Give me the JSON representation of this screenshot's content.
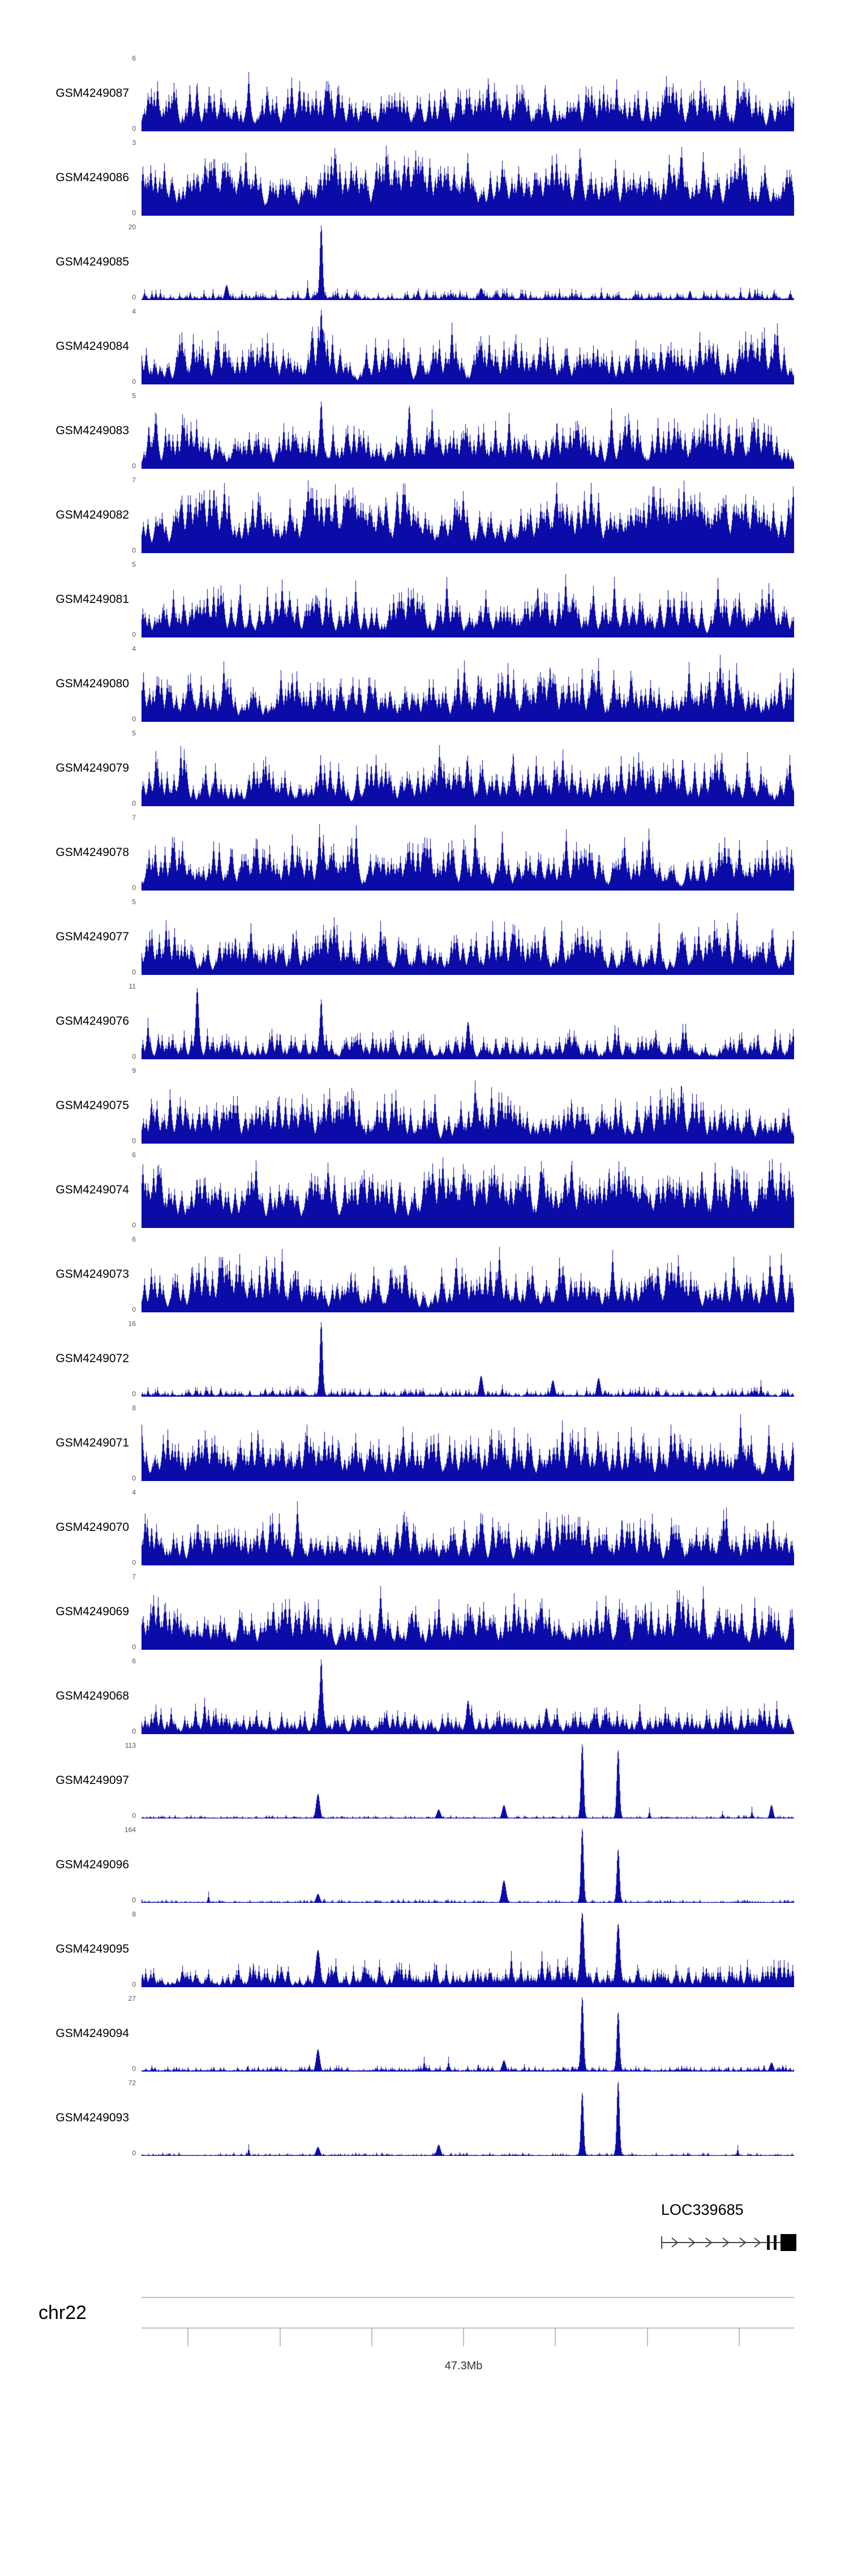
{
  "gene": {
    "name": "LOC339685"
  },
  "ruler": {
    "chrom": "chr22",
    "tick_label": "47.3Mb"
  },
  "chart_data": {
    "type": "area",
    "title": "Genome browser coverage tracks, chr22 around 47.3Mb",
    "x_axis": {
      "chrom": "chr22",
      "tick_label": "47.3Mb"
    },
    "y_zero_label": "0",
    "signal_color": "#0b0ba8",
    "styles": {
      "dense": {
        "base": 0.04,
        "amp": 0.8,
        "power": 2.6,
        "tall": 0.012,
        "tallMax": 0.9,
        "gap": 0.25,
        "decay": 0.8
      },
      "vdense": {
        "base": 0.06,
        "amp": 0.95,
        "power": 1.9,
        "tall": 0.03,
        "tallMax": 0.95,
        "gap": 0.18,
        "decay": 0.84
      },
      "medium": {
        "base": 0.03,
        "amp": 0.45,
        "power": 3.2,
        "tall": 0.006,
        "tallMax": 0.6,
        "gap": 0.3,
        "decay": 0.75
      },
      "mdense": {
        "base": 0.03,
        "amp": 0.38,
        "power": 3.0,
        "tall": 0.008,
        "tallMax": 0.5,
        "gap": 0.3,
        "decay": 0.72
      },
      "spikey": {
        "base": 0.02,
        "amp": 0.16,
        "power": 4.5,
        "tall": 0.003,
        "tallMax": 0.3,
        "gap": 0.3,
        "decay": 0.6
      },
      "sparse": {
        "base": 0.01,
        "amp": 0.05,
        "power": 6.0,
        "tall": 0.0015,
        "tallMax": 0.16,
        "gap": 0.2,
        "decay": 0.5
      },
      "sparse2": {
        "base": 0.015,
        "amp": 0.1,
        "power": 5.0,
        "tall": 0.004,
        "tallMax": 0.2,
        "gap": 0.2,
        "decay": 0.55
      }
    },
    "tracks": [
      {
        "name": "GSM4249087",
        "ymax": 6,
        "ymax_label": "6",
        "style": "dense",
        "seed": 11,
        "peaks": []
      },
      {
        "name": "GSM4249086",
        "ymax": 3,
        "ymax_label": "3",
        "style": "vdense",
        "seed": 22,
        "peaks": []
      },
      {
        "name": "GSM4249085",
        "ymax": 20,
        "ymax_label": "20",
        "style": "spikey",
        "seed": 33,
        "peaks": [
          {
            "x": 0.275,
            "h": 1.0,
            "w": 0.003
          },
          {
            "x": 0.13,
            "h": 0.2,
            "w": 0.004
          },
          {
            "x": 0.52,
            "h": 0.16,
            "w": 0.004
          },
          {
            "x": 0.84,
            "h": 0.12,
            "w": 0.003
          }
        ]
      },
      {
        "name": "GSM4249084",
        "ymax": 4,
        "ymax_label": "4",
        "style": "dense",
        "seed": 44,
        "peaks": [
          {
            "x": 0.275,
            "h": 1.0,
            "w": 0.003
          }
        ]
      },
      {
        "name": "GSM4249083",
        "ymax": 5,
        "ymax_label": "5",
        "style": "dense",
        "seed": 55,
        "peaks": [
          {
            "x": 0.275,
            "h": 0.9,
            "w": 0.003
          },
          {
            "x": 0.41,
            "h": 0.85,
            "w": 0.003
          }
        ]
      },
      {
        "name": "GSM4249082",
        "ymax": 7,
        "ymax_label": "7",
        "style": "vdense",
        "seed": 66,
        "peaks": []
      },
      {
        "name": "GSM4249081",
        "ymax": 5,
        "ymax_label": "5",
        "style": "dense",
        "seed": 77,
        "peaks": []
      },
      {
        "name": "GSM4249080",
        "ymax": 4,
        "ymax_label": "4",
        "style": "dense",
        "seed": 88,
        "peaks": []
      },
      {
        "name": "GSM4249079",
        "ymax": 5,
        "ymax_label": "5",
        "style": "dense",
        "seed": 99,
        "peaks": []
      },
      {
        "name": "GSM4249078",
        "ymax": 7,
        "ymax_label": "7",
        "style": "dense",
        "seed": 110,
        "peaks": []
      },
      {
        "name": "GSM4249077",
        "ymax": 5,
        "ymax_label": "5",
        "style": "dense",
        "seed": 121,
        "peaks": []
      },
      {
        "name": "GSM4249076",
        "ymax": 11,
        "ymax_label": "11",
        "style": "medium",
        "seed": 132,
        "peaks": [
          {
            "x": 0.085,
            "h": 0.95,
            "w": 0.0035
          },
          {
            "x": 0.275,
            "h": 0.8,
            "w": 0.003
          },
          {
            "x": 0.5,
            "h": 0.5,
            "w": 0.004
          }
        ]
      },
      {
        "name": "GSM4249075",
        "ymax": 9,
        "ymax_label": "9",
        "style": "dense",
        "seed": 143,
        "peaks": []
      },
      {
        "name": "GSM4249074",
        "ymax": 6,
        "ymax_label": "6",
        "style": "vdense",
        "seed": 154,
        "peaks": []
      },
      {
        "name": "GSM4249073",
        "ymax": 6,
        "ymax_label": "6",
        "style": "dense",
        "seed": 165,
        "peaks": []
      },
      {
        "name": "GSM4249072",
        "ymax": 16,
        "ymax_label": "16",
        "style": "spikey",
        "seed": 176,
        "peaks": [
          {
            "x": 0.275,
            "h": 1.0,
            "w": 0.003
          },
          {
            "x": 0.52,
            "h": 0.28,
            "w": 0.004
          },
          {
            "x": 0.63,
            "h": 0.22,
            "w": 0.004
          },
          {
            "x": 0.7,
            "h": 0.25,
            "w": 0.004
          }
        ]
      },
      {
        "name": "GSM4249071",
        "ymax": 8,
        "ymax_label": "8",
        "style": "dense",
        "seed": 187,
        "peaks": []
      },
      {
        "name": "GSM4249070",
        "ymax": 4,
        "ymax_label": "4",
        "style": "dense",
        "seed": 198,
        "peaks": []
      },
      {
        "name": "GSM4249069",
        "ymax": 7,
        "ymax_label": "7",
        "style": "dense",
        "seed": 209,
        "peaks": []
      },
      {
        "name": "GSM4249068",
        "ymax": 6,
        "ymax_label": "6",
        "style": "medium",
        "seed": 220,
        "peaks": [
          {
            "x": 0.275,
            "h": 1.0,
            "w": 0.003
          },
          {
            "x": 0.5,
            "h": 0.45,
            "w": 0.004
          },
          {
            "x": 0.62,
            "h": 0.35,
            "w": 0.004
          }
        ]
      },
      {
        "name": "GSM4249097",
        "ymax": 113,
        "ymax_label": "113",
        "style": "sparse",
        "seed": 231,
        "peaks": [
          {
            "x": 0.27,
            "h": 0.33,
            "w": 0.004
          },
          {
            "x": 0.455,
            "h": 0.12,
            "w": 0.004
          },
          {
            "x": 0.555,
            "h": 0.18,
            "w": 0.004
          },
          {
            "x": 0.675,
            "h": 1.0,
            "w": 0.003
          },
          {
            "x": 0.73,
            "h": 0.92,
            "w": 0.003
          },
          {
            "x": 0.965,
            "h": 0.18,
            "w": 0.0035
          }
        ]
      },
      {
        "name": "GSM4249096",
        "ymax": 164,
        "ymax_label": "164",
        "style": "sparse",
        "seed": 242,
        "peaks": [
          {
            "x": 0.27,
            "h": 0.12,
            "w": 0.004
          },
          {
            "x": 0.555,
            "h": 0.3,
            "w": 0.0045
          },
          {
            "x": 0.675,
            "h": 1.0,
            "w": 0.003
          },
          {
            "x": 0.73,
            "h": 0.72,
            "w": 0.003
          }
        ]
      },
      {
        "name": "GSM4249095",
        "ymax": 8,
        "ymax_label": "8",
        "style": "mdense",
        "seed": 253,
        "peaks": [
          {
            "x": 0.27,
            "h": 0.5,
            "w": 0.005
          },
          {
            "x": 0.675,
            "h": 1.0,
            "w": 0.004
          },
          {
            "x": 0.73,
            "h": 0.85,
            "w": 0.004
          }
        ]
      },
      {
        "name": "GSM4249094",
        "ymax": 27,
        "ymax_label": "27",
        "style": "sparse2",
        "seed": 264,
        "peaks": [
          {
            "x": 0.27,
            "h": 0.3,
            "w": 0.004
          },
          {
            "x": 0.555,
            "h": 0.15,
            "w": 0.004
          },
          {
            "x": 0.675,
            "h": 1.0,
            "w": 0.003
          },
          {
            "x": 0.73,
            "h": 0.8,
            "w": 0.003
          },
          {
            "x": 0.965,
            "h": 0.12,
            "w": 0.004
          }
        ]
      },
      {
        "name": "GSM4249093",
        "ymax": 72,
        "ymax_label": "72",
        "style": "sparse",
        "seed": 275,
        "peaks": [
          {
            "x": 0.27,
            "h": 0.12,
            "w": 0.004
          },
          {
            "x": 0.455,
            "h": 0.15,
            "w": 0.004
          },
          {
            "x": 0.675,
            "h": 0.85,
            "w": 0.003
          },
          {
            "x": 0.73,
            "h": 1.0,
            "w": 0.003
          }
        ]
      }
    ]
  }
}
